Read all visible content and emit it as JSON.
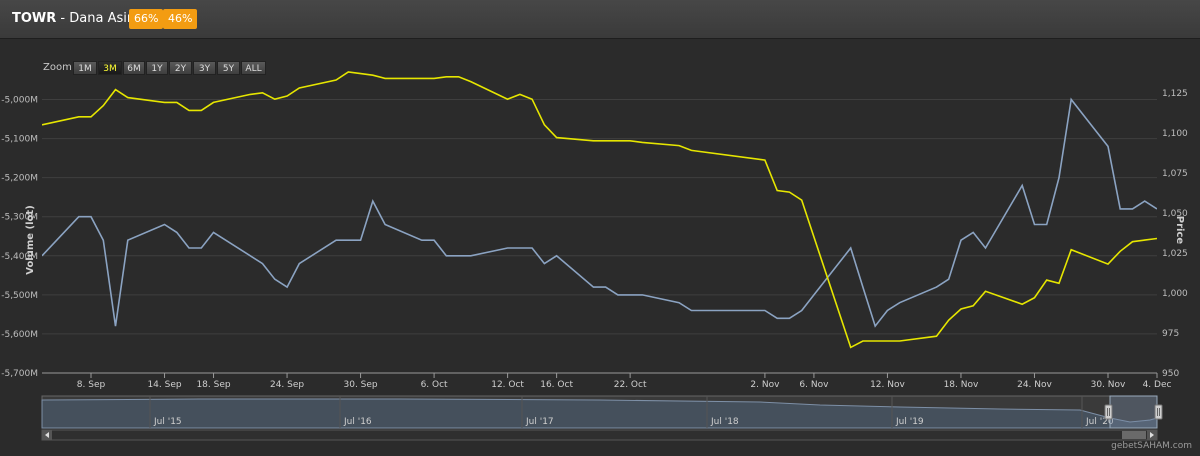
{
  "header": {
    "ticker": "TOWR",
    "subtitle": "Dana Asing",
    "badges": [
      "66%",
      "46%"
    ]
  },
  "zoom": {
    "label": "Zoom",
    "buttons": [
      "1M",
      "3M",
      "6M",
      "1Y",
      "2Y",
      "3Y",
      "5Y",
      "ALL"
    ],
    "active": "3M"
  },
  "watermark": "gebetSAHAM.com",
  "colors": {
    "volume": "#8ba3c2",
    "price": "#e6e600",
    "background": "#2b2b2b"
  },
  "chart_data": {
    "type": "line",
    "x_dates": [
      "2020-09-04",
      "2020-09-07",
      "2020-09-08",
      "2020-09-09",
      "2020-09-10",
      "2020-09-11",
      "2020-09-14",
      "2020-09-15",
      "2020-09-16",
      "2020-09-17",
      "2020-09-18",
      "2020-09-21",
      "2020-09-22",
      "2020-09-23",
      "2020-09-24",
      "2020-09-25",
      "2020-09-28",
      "2020-09-29",
      "2020-09-30",
      "2020-10-01",
      "2020-10-02",
      "2020-10-05",
      "2020-10-06",
      "2020-10-07",
      "2020-10-08",
      "2020-10-09",
      "2020-10-12",
      "2020-10-13",
      "2020-10-14",
      "2020-10-15",
      "2020-10-16",
      "2020-10-19",
      "2020-10-20",
      "2020-10-21",
      "2020-10-22",
      "2020-10-23",
      "2020-10-26",
      "2020-10-27",
      "2020-11-02",
      "2020-11-03",
      "2020-11-04",
      "2020-11-05",
      "2020-11-06",
      "2020-11-09",
      "2020-11-10",
      "2020-11-11",
      "2020-11-12",
      "2020-11-13",
      "2020-11-16",
      "2020-11-17",
      "2020-11-18",
      "2020-11-19",
      "2020-11-20",
      "2020-11-23",
      "2020-11-24",
      "2020-11-25",
      "2020-11-26",
      "2020-11-27",
      "2020-11-30",
      "2020-12-01",
      "2020-12-02",
      "2020-12-03",
      "2020-12-04"
    ],
    "x_tick_labels": [
      "8. Sep",
      "14. Sep",
      "18. Sep",
      "24. Sep",
      "30. Sep",
      "6. Oct",
      "12. Oct",
      "16. Oct",
      "22. Oct",
      "2. Nov",
      "6. Nov",
      "12. Nov",
      "18. Nov",
      "24. Nov",
      "30. Nov",
      "4. Dec"
    ],
    "x_tick_dates": [
      "2020-09-08",
      "2020-09-14",
      "2020-09-18",
      "2020-09-24",
      "2020-09-30",
      "2020-10-06",
      "2020-10-12",
      "2020-10-16",
      "2020-10-22",
      "2020-11-02",
      "2020-11-06",
      "2020-11-12",
      "2020-11-18",
      "2020-11-24",
      "2020-11-30",
      "2020-12-04"
    ],
    "series": [
      {
        "axis": "left",
        "values": [
          -5400,
          -5300,
          -5300,
          -5360,
          -5580,
          -5360,
          -5320,
          -5340,
          -5380,
          -5380,
          -5340,
          -5400,
          -5420,
          -5460,
          -5480,
          -5420,
          -5360,
          -5360,
          -5360,
          -5260,
          -5320,
          -5360,
          -5360,
          -5400,
          -5400,
          -5400,
          -5380,
          -5380,
          -5380,
          -5420,
          -5400,
          -5480,
          -5480,
          -5500,
          -5500,
          -5500,
          -5520,
          -5540,
          -5540,
          -5560,
          -5560,
          -5540,
          -5500,
          -5380,
          -5480,
          -5580,
          -5540,
          -5520,
          -5480,
          -5460,
          -5360,
          -5340,
          -5380,
          -5220,
          -5320,
          -5320,
          -5200,
          -5000,
          -5120,
          -5280,
          -5280,
          -5260,
          -5280
        ]
      },
      {
        "axis": "right",
        "values": [
          1105,
          1110,
          1110,
          1117,
          1127,
          1122,
          1119,
          1119,
          1114,
          1114,
          1119,
          1124,
          1125,
          1121,
          1123,
          1128,
          1133,
          1138,
          1137,
          1136,
          1134,
          1134,
          1134,
          1135,
          1135,
          1132,
          1121,
          1124,
          1121,
          1105,
          1097,
          1095,
          1095,
          1095,
          1095,
          1094,
          1092,
          1089,
          1083,
          1064,
          1063,
          1058,
          1035,
          966,
          970,
          970,
          970,
          970,
          973,
          983,
          990,
          992,
          1001,
          993,
          997,
          1008,
          1006,
          1027,
          1018,
          1026,
          1032,
          1033,
          1034
        ]
      }
    ],
    "y_left": {
      "label": "Volume (lot)",
      "min": -5700,
      "max": -4950,
      "ticks": [
        -5000,
        -5100,
        -5200,
        -5300,
        -5400,
        -5500,
        -5600,
        -5700
      ],
      "tick_labels": [
        "-5,000M",
        "-5,100M",
        "-5,200M",
        "-5,300M",
        "-5,400M",
        "-5,500M",
        "-5,600M",
        "-5,700M"
      ]
    },
    "y_right": {
      "label": "Price",
      "min": 950,
      "max": 1133,
      "ticks": [
        950,
        975,
        1000,
        1025,
        1050,
        1075,
        1100,
        1125
      ],
      "tick_labels": [
        "950",
        "975",
        "1,000",
        "1,025",
        "1,050",
        "1,075",
        "1,100",
        "1,125"
      ]
    },
    "grid": true,
    "navigator": {
      "labels": [
        "Jul '15",
        "Jul '16",
        "Jul '17",
        "Jul '18",
        "Jul '19",
        "Jul '20"
      ]
    }
  }
}
